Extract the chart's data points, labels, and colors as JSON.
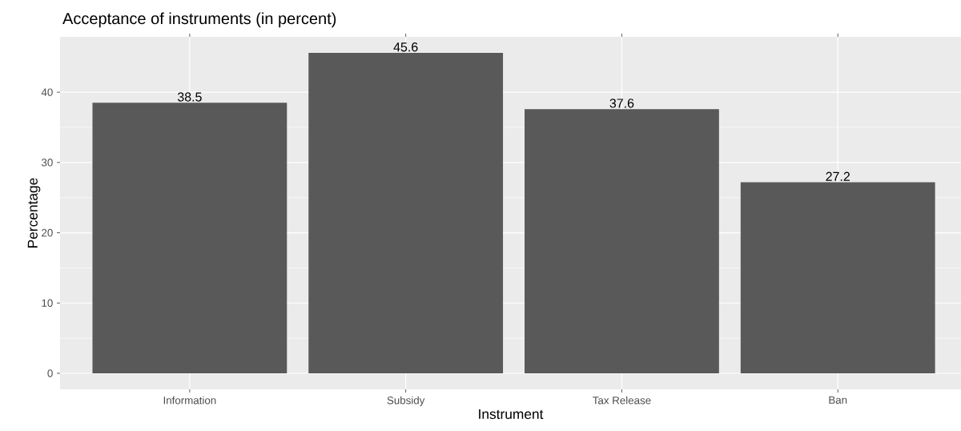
{
  "chart_data": {
    "type": "bar",
    "title": "Acceptance of instruments (in percent)",
    "xlabel": "Instrument",
    "ylabel": "Percentage",
    "categories": [
      "Information",
      "Subsidy",
      "Tax Release",
      "Ban"
    ],
    "values": [
      38.5,
      45.6,
      37.6,
      27.2
    ],
    "color": "#595959",
    "ylim": [
      -2.28,
      47.88
    ],
    "yticks": [
      0,
      10,
      20,
      30,
      40
    ],
    "grid": true,
    "data_labels": true
  }
}
